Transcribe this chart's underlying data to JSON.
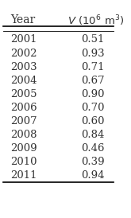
{
  "header_year": "Year",
  "years": [
    2001,
    2002,
    2003,
    2004,
    2005,
    2006,
    2007,
    2008,
    2009,
    2010,
    2011
  ],
  "values": [
    0.51,
    0.93,
    0.71,
    0.67,
    0.9,
    0.7,
    0.6,
    0.84,
    0.46,
    0.39,
    0.94
  ],
  "background_color": "#ffffff",
  "text_color": "#333333",
  "font_size": 9.5,
  "header_font_size": 10
}
